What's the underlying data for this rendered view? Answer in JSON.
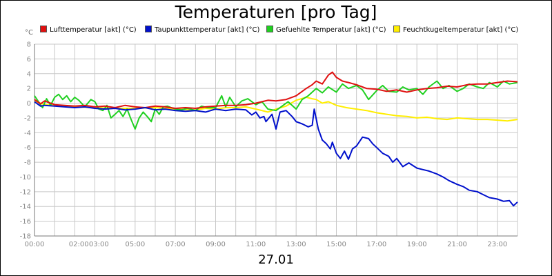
{
  "chart_data": {
    "type": "line",
    "title": "Temperaturen [pro Tag]",
    "date_label": "27.01",
    "y_unit": "°C",
    "ylim": [
      -18,
      8
    ],
    "y_ticks": [
      8,
      6,
      4,
      2,
      0,
      -2,
      -4,
      -6,
      -8,
      -10,
      -12,
      -14,
      -16,
      -18
    ],
    "x_range_hours": [
      0,
      24
    ],
    "x_ticks": [
      {
        "h": 0,
        "label": "00:00"
      },
      {
        "h": 2.2,
        "label": "02:00"
      },
      {
        "h": 3.2,
        "label": "03:00"
      },
      {
        "h": 5,
        "label": "05:00"
      },
      {
        "h": 7,
        "label": "07:00"
      },
      {
        "h": 9,
        "label": "09:00"
      },
      {
        "h": 11,
        "label": "11:00"
      },
      {
        "h": 13,
        "label": "13:00"
      },
      {
        "h": 15,
        "label": "15:00"
      },
      {
        "h": 17,
        "label": "17:00"
      },
      {
        "h": 19,
        "label": "19:00"
      },
      {
        "h": 21,
        "label": "21:00"
      },
      {
        "h": 23,
        "label": "23:00"
      }
    ],
    "grid": true,
    "legend_position": "top",
    "series": [
      {
        "name": "Lufttemperatur [akt] (°C)",
        "color": "#e01010",
        "x": [
          0,
          0.3,
          0.5,
          1,
          1.5,
          2,
          2.5,
          3,
          3.5,
          4,
          4.5,
          5,
          5.5,
          6,
          6.5,
          7,
          7.5,
          8,
          8.5,
          9,
          9.5,
          10,
          10.5,
          11,
          11.3,
          11.6,
          12,
          12.5,
          13,
          13.5,
          13.8,
          14,
          14.3,
          14.6,
          14.8,
          15,
          15.3,
          15.6,
          16,
          16.5,
          17,
          17.5,
          18,
          18.5,
          19,
          19.5,
          20,
          20.5,
          21,
          21.5,
          22,
          22.5,
          23,
          23.5,
          24
        ],
        "y": [
          0.5,
          -0.1,
          0.3,
          -0.2,
          -0.3,
          -0.4,
          -0.3,
          -0.5,
          -0.4,
          -0.6,
          -0.3,
          -0.5,
          -0.6,
          -0.4,
          -0.5,
          -0.7,
          -0.6,
          -0.7,
          -0.5,
          -0.4,
          -0.3,
          -0.3,
          -0.2,
          0.0,
          0.2,
          0.4,
          0.3,
          0.5,
          1.0,
          2.0,
          2.5,
          3.0,
          2.6,
          3.8,
          4.2,
          3.5,
          3.0,
          2.8,
          2.5,
          2.0,
          1.9,
          1.6,
          1.8,
          1.5,
          1.8,
          2.0,
          2.1,
          2.3,
          2.2,
          2.5,
          2.6,
          2.6,
          2.8,
          3.0,
          2.9
        ]
      },
      {
        "name": "Taupunkttemperatur [akt] (°C)",
        "color": "#0010cc",
        "x": [
          0,
          0.3,
          0.5,
          1,
          1.5,
          2,
          2.5,
          3,
          3.5,
          4,
          4.5,
          5,
          5.5,
          6,
          6.5,
          7,
          7.5,
          8,
          8.5,
          9,
          9.5,
          10,
          10.5,
          10.8,
          11,
          11.2,
          11.4,
          11.5,
          11.8,
          12,
          12.2,
          12.5,
          12.8,
          13,
          13.3,
          13.6,
          13.8,
          13.9,
          14.1,
          14.3,
          14.5,
          14.7,
          14.8,
          15,
          15.2,
          15.4,
          15.6,
          15.8,
          16,
          16.3,
          16.6,
          16.8,
          17,
          17.3,
          17.6,
          17.8,
          18,
          18.3,
          18.6,
          19,
          19.3,
          19.6,
          20,
          20.3,
          20.6,
          21,
          21.3,
          21.6,
          22,
          22.3,
          22.6,
          23,
          23.3,
          23.6,
          23.8,
          24
        ],
        "y": [
          0.2,
          -0.4,
          -0.3,
          -0.4,
          -0.5,
          -0.6,
          -0.5,
          -0.7,
          -0.8,
          -0.7,
          -0.9,
          -0.8,
          -0.6,
          -0.9,
          -0.8,
          -1.0,
          -1.1,
          -1.0,
          -1.2,
          -0.8,
          -1.0,
          -0.8,
          -0.9,
          -1.6,
          -1.2,
          -2.0,
          -1.8,
          -2.5,
          -1.5,
          -3.5,
          -1.2,
          -1.0,
          -1.8,
          -2.5,
          -2.8,
          -3.2,
          -3.0,
          -0.8,
          -3.5,
          -5.0,
          -5.5,
          -6.2,
          -5.3,
          -6.8,
          -7.5,
          -6.5,
          -7.6,
          -6.2,
          -5.8,
          -4.6,
          -4.8,
          -5.5,
          -6.0,
          -6.8,
          -7.2,
          -8.0,
          -7.5,
          -8.6,
          -8.1,
          -8.8,
          -9.0,
          -9.2,
          -9.6,
          -10.0,
          -10.5,
          -11.0,
          -11.3,
          -11.8,
          -12.0,
          -12.4,
          -12.8,
          -13.0,
          -13.3,
          -13.2,
          -13.9,
          -13.4
        ]
      },
      {
        "name": "Gefuehlte Temperatur [akt] (°C)",
        "color": "#20d020",
        "x": [
          0,
          0.2,
          0.4,
          0.6,
          0.8,
          1,
          1.2,
          1.4,
          1.6,
          1.8,
          2,
          2.2,
          2.5,
          2.8,
          3,
          3.2,
          3.4,
          3.6,
          3.8,
          4,
          4.2,
          4.4,
          4.6,
          4.8,
          5,
          5.2,
          5.4,
          5.6,
          5.8,
          6,
          6.2,
          6.4,
          6.6,
          6.8,
          7,
          7.3,
          7.6,
          8,
          8.3,
          8.6,
          9,
          9.3,
          9.5,
          9.7,
          10,
          10.3,
          10.6,
          11,
          11.3,
          11.6,
          12,
          12.3,
          12.6,
          13,
          13.3,
          13.6,
          14,
          14.3,
          14.6,
          15,
          15.3,
          15.6,
          16,
          16.3,
          16.6,
          17,
          17.3,
          17.6,
          18,
          18.3,
          18.6,
          19,
          19.3,
          19.6,
          20,
          20.3,
          20.6,
          21,
          21.3,
          21.6,
          22,
          22.3,
          22.6,
          23,
          23.3,
          23.6,
          24
        ],
        "y": [
          1.0,
          0.2,
          -0.6,
          0.6,
          -0.3,
          0.8,
          1.2,
          0.5,
          1.0,
          0.2,
          0.8,
          0.4,
          -0.5,
          0.5,
          0.2,
          -0.8,
          -1.0,
          -0.3,
          -2.0,
          -1.5,
          -1.0,
          -1.8,
          -0.8,
          -2.2,
          -3.5,
          -2.0,
          -1.2,
          -1.8,
          -2.5,
          -0.8,
          -1.5,
          -0.5,
          -0.4,
          -0.6,
          -0.8,
          -0.9,
          -0.7,
          -1.0,
          -0.4,
          -0.6,
          -0.6,
          1.0,
          -0.5,
          0.8,
          -0.5,
          0.3,
          0.6,
          -0.2,
          0.2,
          -0.8,
          -1.0,
          -0.4,
          0.2,
          -0.8,
          0.5,
          1.0,
          2.0,
          1.4,
          2.2,
          1.5,
          2.6,
          2.0,
          2.4,
          1.8,
          0.5,
          1.7,
          2.4,
          1.6,
          1.5,
          2.2,
          1.8,
          2.0,
          1.2,
          2.2,
          3.0,
          2.0,
          2.4,
          1.6,
          2.0,
          2.6,
          2.2,
          2.0,
          2.8,
          2.2,
          3.0,
          2.6,
          2.8
        ]
      },
      {
        "name": "Feuchtkugeltemperatur [akt] (°C)",
        "color": "#ffee00",
        "x": [
          0,
          0.5,
          1,
          2,
          3,
          4,
          5,
          6,
          7,
          8,
          8.5,
          9,
          9.5,
          10,
          10.5,
          11,
          11.3,
          11.6,
          12,
          12.5,
          13,
          13.5,
          13.8,
          14,
          14.3,
          14.6,
          15,
          15.5,
          16,
          16.5,
          17,
          17.5,
          18,
          18.5,
          19,
          19.5,
          20,
          20.5,
          21,
          21.5,
          22,
          22.5,
          23,
          23.5,
          24
        ],
        "y": [
          0.3,
          -0.2,
          -0.3,
          -0.5,
          -0.6,
          -0.7,
          -0.7,
          -0.6,
          -0.8,
          -0.9,
          -0.7,
          -0.8,
          -0.6,
          -0.6,
          -0.5,
          -0.8,
          -1.0,
          -1.2,
          -0.8,
          -0.4,
          0.4,
          0.8,
          0.6,
          0.5,
          0.0,
          0.2,
          -0.3,
          -0.6,
          -0.8,
          -1.0,
          -1.3,
          -1.5,
          -1.7,
          -1.8,
          -2.0,
          -1.9,
          -2.1,
          -2.2,
          -2.0,
          -2.1,
          -2.2,
          -2.2,
          -2.3,
          -2.4,
          -2.2
        ]
      }
    ]
  }
}
